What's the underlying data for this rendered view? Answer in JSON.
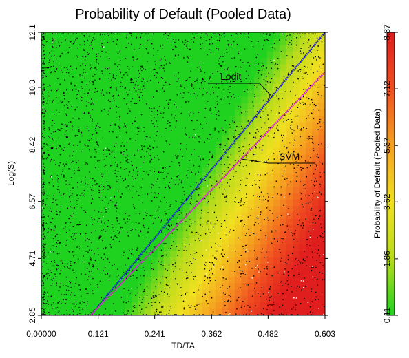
{
  "chart_data": {
    "type": "heatmap",
    "title": "Probability of Default (Pooled Data)",
    "xlabel": "TD/TA",
    "ylabel": "Log(S)",
    "xlim": [
      0.0,
      0.603
    ],
    "ylim": [
      2.85,
      12.1
    ],
    "x_ticks": [
      "0.00000",
      "0.121",
      "0.241",
      "0.362",
      "0.482",
      "0.603"
    ],
    "y_ticks": [
      "2.85",
      "4.71",
      "6.57",
      "8.42",
      "10.3",
      "12.1"
    ],
    "x_tick_values": [
      0.0,
      0.121,
      0.241,
      0.362,
      0.482,
      0.603
    ],
    "y_tick_values": [
      2.85,
      4.71,
      6.57,
      8.42,
      10.3,
      12.1
    ],
    "colorbar": {
      "label": "Probability of Default (Pooled Data)",
      "ticks": [
        "0.11",
        "1.86",
        "3.62",
        "5.37",
        "7.12",
        "8.87"
      ],
      "tick_values": [
        0.11,
        1.86,
        3.62,
        5.37,
        7.12,
        8.87
      ],
      "range": [
        0.11,
        8.87
      ],
      "colors": [
        "#1fd21f",
        "#b8dc1c",
        "#f0e020",
        "#f5a020",
        "#f05020",
        "#e01e1e"
      ]
    },
    "series": [
      {
        "name": "Logit",
        "kind": "line",
        "color": "#2020d0",
        "x": [
          0.105,
          0.603
        ],
        "y": [
          2.85,
          12.1
        ]
      },
      {
        "name": "SVM",
        "kind": "line",
        "color": "#d020d0",
        "x": [
          0.105,
          0.603
        ],
        "y": [
          2.85,
          10.8
        ]
      }
    ],
    "scatter": {
      "point_color": "#000000",
      "approx_count": 3500
    },
    "grid": false,
    "legend": "inline annotations"
  }
}
